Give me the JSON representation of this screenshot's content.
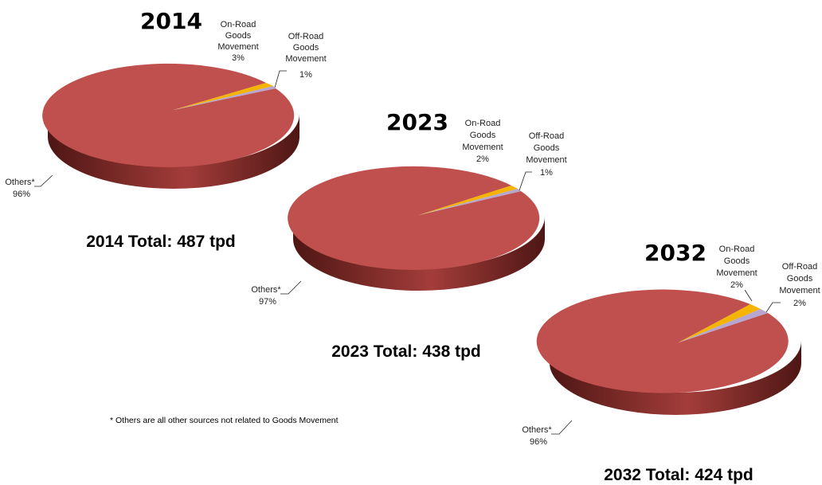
{
  "chart_data": [
    {
      "type": "pie",
      "title": "2014",
      "total_label": "2014 Total: 487 tpd",
      "slices": [
        {
          "name": "On-Road Goods Movement",
          "value": 3,
          "label": "3%"
        },
        {
          "name": "Off-Road Goods Movement",
          "value": 1,
          "label": "1%"
        },
        {
          "name": "Others*",
          "value": 96,
          "label": "96%"
        }
      ]
    },
    {
      "type": "pie",
      "title": "2023",
      "total_label": "2023 Total: 438 tpd",
      "slices": [
        {
          "name": "On-Road Goods Movement",
          "value": 2,
          "label": "2%"
        },
        {
          "name": "Off-Road Goods Movement",
          "value": 1,
          "label": "1%"
        },
        {
          "name": "Others*",
          "value": 97,
          "label": "97%"
        }
      ]
    },
    {
      "type": "pie",
      "title": "2032",
      "total_label": "2032 Total: 424 tpd",
      "slices": [
        {
          "name": "On-Road Goods Movement",
          "value": 2,
          "label": "2%"
        },
        {
          "name": "Off-Road Goods Movement",
          "value": 2,
          "label": "2%"
        },
        {
          "name": "Others*",
          "value": 96,
          "label": "96%"
        }
      ]
    }
  ],
  "footnote": "* Others are all other sources not related to Goods Movement",
  "colors": {
    "others": "#c0504d",
    "others_side_light": "#a33d3a",
    "others_side_dark": "#4e1614",
    "on_road": "#f5b400",
    "off_road": "#b7a6cf"
  }
}
